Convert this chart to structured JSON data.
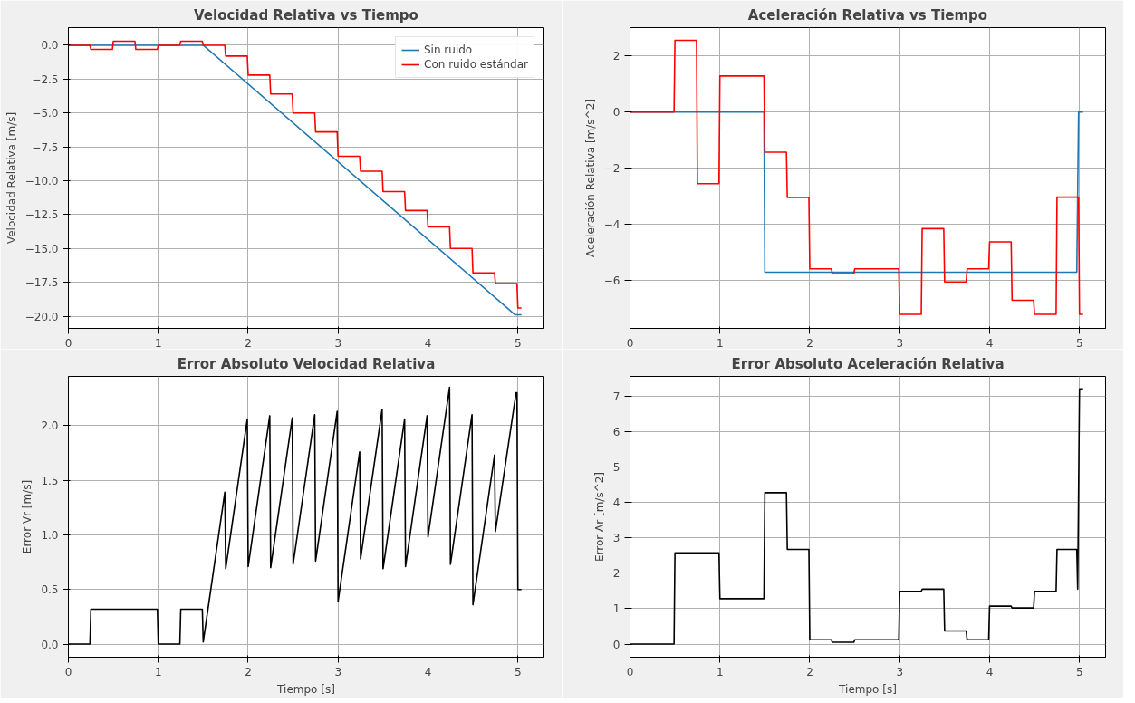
{
  "chart_data": [
    {
      "type": "line",
      "title": "Velocidad Relativa vs Tiempo",
      "ylabel": "Velocidad Relativa [m/s]",
      "xlim": [
        0,
        5.29
      ],
      "ylim": [
        -20.9,
        1.3
      ],
      "xticks": [
        0,
        1,
        2,
        3,
        4,
        5
      ],
      "yticks": [
        {
          "value": 0,
          "label": "0.0"
        },
        {
          "value": -2.5,
          "label": "−2.5"
        },
        {
          "value": -5,
          "label": "−5.0"
        },
        {
          "value": -7.5,
          "label": "−7.5"
        },
        {
          "value": -10,
          "label": "−10.0"
        },
        {
          "value": -12.5,
          "label": "−12.5"
        },
        {
          "value": -15,
          "label": "−15.0"
        },
        {
          "value": -17.5,
          "label": "−17.5"
        },
        {
          "value": -20,
          "label": "−20.0"
        }
      ],
      "grid": true,
      "legend": "top right",
      "line_style": "solid",
      "series": [
        {
          "name": "Sin ruido",
          "color": "#1f77b4",
          "x": [
            0,
            1.5,
            4.97,
            5.04
          ],
          "values": [
            0,
            0,
            -19.9,
            -19.9
          ]
        },
        {
          "name": "Con ruido estándar",
          "color": "#ff0000",
          "x": [
            0,
            0.24,
            0.25,
            0.49,
            0.5,
            0.74,
            0.75,
            0.99,
            1.0,
            1.24,
            1.25,
            1.49,
            1.5,
            1.74,
            1.75,
            1.99,
            2.0,
            2.24,
            2.25,
            2.49,
            2.5,
            2.74,
            2.75,
            2.99,
            3.0,
            3.24,
            3.25,
            3.49,
            3.5,
            3.74,
            3.75,
            3.99,
            4.0,
            4.24,
            4.25,
            4.49,
            4.5,
            4.74,
            4.75,
            4.99,
            5.0,
            5.04
          ],
          "values": [
            0,
            0,
            -0.3,
            -0.3,
            0.3,
            0.3,
            -0.3,
            -0.3,
            0,
            0,
            0.3,
            0.3,
            0,
            0,
            -0.8,
            -0.8,
            -2.2,
            -2.2,
            -3.6,
            -3.6,
            -5.0,
            -5.0,
            -6.4,
            -6.4,
            -8.2,
            -8.2,
            -9.3,
            -9.3,
            -10.8,
            -10.8,
            -12.2,
            -12.2,
            -13.4,
            -13.4,
            -15.0,
            -15.0,
            -16.8,
            -16.8,
            -17.6,
            -17.6,
            -19.4,
            -19.4
          ]
        }
      ]
    },
    {
      "type": "line",
      "title": "Aceleración Relativa vs Tiempo",
      "ylabel": "Aceleración Relativa [m/s^2]",
      "xlim": [
        0,
        5.29
      ],
      "ylim": [
        -7.7,
        3.0
      ],
      "xticks": [
        0,
        1,
        2,
        3,
        4,
        5
      ],
      "yticks": [
        {
          "value": -6,
          "label": "−6"
        },
        {
          "value": -4,
          "label": "−4"
        },
        {
          "value": -2,
          "label": "−2"
        },
        0,
        2
      ],
      "grid": true,
      "line_style": "solid",
      "series": [
        {
          "color": "#1f77b4",
          "x": [
            0,
            1.49,
            1.5,
            4.97,
            4.99,
            5.04
          ],
          "values": [
            0,
            0,
            -5.7,
            -5.7,
            0,
            0
          ]
        },
        {
          "color": "#ff0000",
          "x": [
            0,
            0.49,
            0.5,
            0.74,
            0.75,
            0.99,
            1.0,
            1.49,
            1.5,
            1.74,
            1.75,
            1.99,
            2.0,
            2.24,
            2.25,
            2.49,
            2.5,
            2.99,
            3.0,
            3.24,
            3.25,
            3.49,
            3.5,
            3.74,
            3.75,
            3.99,
            4.0,
            4.24,
            4.25,
            4.49,
            4.5,
            4.74,
            4.75,
            4.99,
            5.0,
            5.04
          ],
          "values": [
            0,
            0,
            2.55,
            2.55,
            -2.55,
            -2.55,
            1.28,
            1.28,
            -1.43,
            -1.43,
            -3.04,
            -3.04,
            -5.58,
            -5.58,
            -5.75,
            -5.75,
            -5.58,
            -5.58,
            -7.2,
            -7.2,
            -4.15,
            -4.15,
            -6.05,
            -6.05,
            -5.58,
            -5.58,
            -4.62,
            -4.62,
            -6.7,
            -6.7,
            -7.2,
            -7.2,
            -3.03,
            -3.03,
            -7.2,
            -7.2
          ]
        }
      ]
    },
    {
      "type": "line",
      "title": "Error Absoluto Velocidad Relativa",
      "xlabel": "Tiempo [s]",
      "ylabel": "Error Vr [m/s]",
      "xlim": [
        0,
        5.29
      ],
      "ylim": [
        -0.12,
        2.45
      ],
      "xticks": [
        0,
        1,
        2,
        3,
        4,
        5
      ],
      "yticks": [
        {
          "value": 0,
          "label": "0.0"
        },
        0.5,
        {
          "value": 1,
          "label": "1.0"
        },
        1.5,
        {
          "value": 2,
          "label": "2.0"
        }
      ],
      "grid": true,
      "line_style": "solid",
      "series": [
        {
          "color": "#000000",
          "x": [
            0,
            0.24,
            0.25,
            0.99,
            1.0,
            1.24,
            1.25,
            1.49,
            1.5,
            1.74,
            1.75,
            1.99,
            2.0,
            2.24,
            2.25,
            2.49,
            2.5,
            2.74,
            2.75,
            2.99,
            3.0,
            3.24,
            3.25,
            3.49,
            3.5,
            3.74,
            3.75,
            3.99,
            4.0,
            4.24,
            4.25,
            4.49,
            4.5,
            4.74,
            4.75,
            4.98,
            4.99,
            5.0,
            5.04
          ],
          "values": [
            0,
            0,
            0.32,
            0.32,
            0,
            0,
            0.32,
            0.32,
            0.02,
            1.39,
            0.69,
            2.06,
            0.71,
            2.09,
            0.7,
            2.07,
            0.73,
            2.1,
            0.76,
            2.13,
            0.39,
            1.76,
            0.78,
            2.15,
            0.69,
            2.06,
            0.71,
            2.09,
            0.98,
            2.35,
            0.73,
            2.1,
            0.36,
            1.73,
            1.03,
            2.3,
            2.3,
            0.5,
            0.5
          ]
        }
      ]
    },
    {
      "type": "line",
      "title": "Error Absoluto Aceleración Relativa",
      "xlabel": "Tiempo [s]",
      "ylabel": "Error Ar [m/s^2]",
      "xlim": [
        0,
        5.29
      ],
      "ylim": [
        -0.37,
        7.55
      ],
      "xticks": [
        0,
        1,
        2,
        3,
        4,
        5
      ],
      "yticks": [
        0,
        1,
        2,
        3,
        4,
        5,
        6,
        7
      ],
      "grid": true,
      "line_style": "solid",
      "series": [
        {
          "color": "#000000",
          "x": [
            0,
            0.49,
            0.5,
            0.99,
            1.0,
            1.49,
            1.5,
            1.74,
            1.75,
            1.99,
            2.0,
            2.24,
            2.25,
            2.49,
            2.5,
            2.99,
            3.0,
            3.24,
            3.25,
            3.49,
            3.5,
            3.74,
            3.75,
            3.99,
            4.0,
            4.24,
            4.25,
            4.49,
            4.5,
            4.74,
            4.75,
            4.97,
            4.98,
            5.0,
            5.04
          ],
          "values": [
            0,
            0,
            2.57,
            2.57,
            1.28,
            1.28,
            4.27,
            4.27,
            2.67,
            2.67,
            0.12,
            0.12,
            0.05,
            0.05,
            0.12,
            0.12,
            1.49,
            1.49,
            1.55,
            1.55,
            0.37,
            0.37,
            0.12,
            0.12,
            1.07,
            1.07,
            1.02,
            1.02,
            1.49,
            1.49,
            2.67,
            2.67,
            1.55,
            7.2,
            7.2
          ]
        }
      ]
    }
  ]
}
